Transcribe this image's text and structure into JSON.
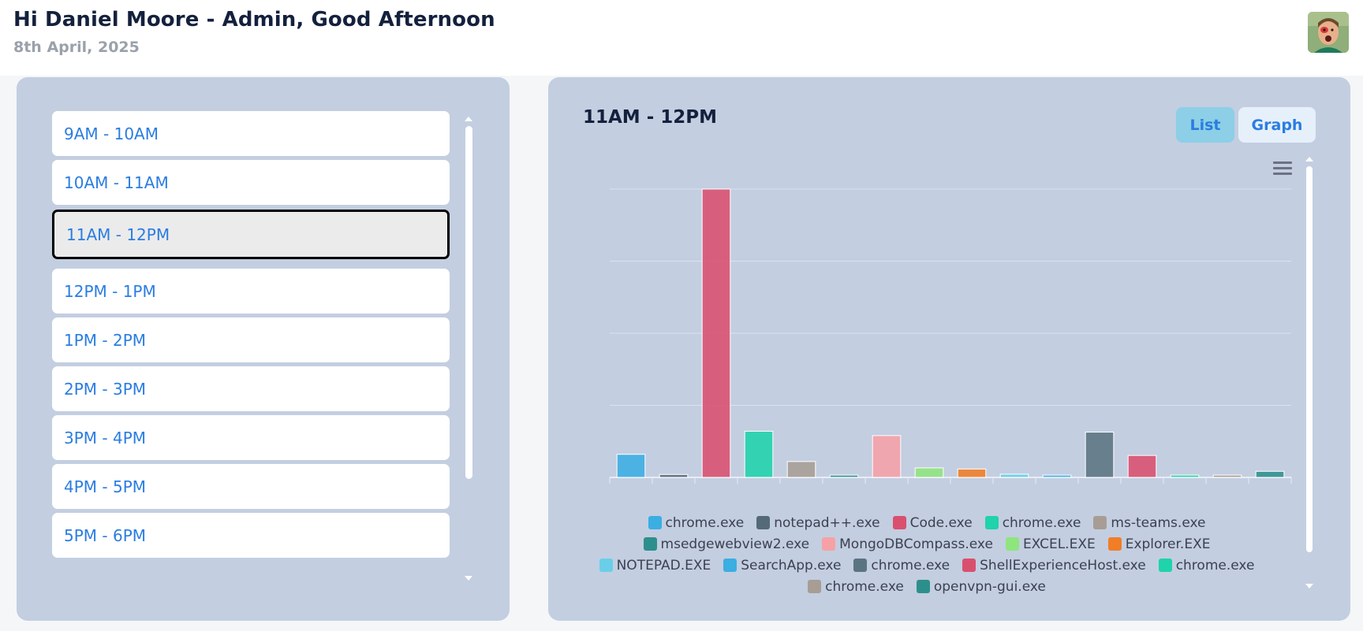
{
  "header": {
    "greeting": "Hi Daniel Moore - Admin, Good Afternoon",
    "date": "8th April, 2025"
  },
  "time_slots": [
    {
      "label": "9AM - 10AM",
      "active": false
    },
    {
      "label": "10AM - 11AM",
      "active": false
    },
    {
      "label": "11AM - 12PM",
      "active": true
    },
    {
      "label": "12PM - 1PM",
      "active": false
    },
    {
      "label": "1PM - 2PM",
      "active": false
    },
    {
      "label": "2PM - 3PM",
      "active": false
    },
    {
      "label": "3PM - 4PM",
      "active": false
    },
    {
      "label": "4PM - 5PM",
      "active": false
    },
    {
      "label": "5PM - 6PM",
      "active": false
    }
  ],
  "detail": {
    "title": "11AM - 12PM",
    "view_buttons": {
      "list": "List",
      "graph": "Graph"
    },
    "selected_view": "Graph"
  },
  "chart_data": {
    "type": "bar",
    "title": "",
    "xlabel": "",
    "ylabel": "",
    "ylim": [
      0,
      100
    ],
    "grid": true,
    "legend_position": "bottom",
    "series": [
      {
        "name": "chrome.exe",
        "color": "#3baee2",
        "value": 8
      },
      {
        "name": "notepad++.exe",
        "color": "#546a78",
        "value": 1
      },
      {
        "name": "Code.exe",
        "color": "#d9506e",
        "value": 100
      },
      {
        "name": "chrome.exe",
        "color": "#1fd3ab",
        "value": 16
      },
      {
        "name": "ms-teams.exe",
        "color": "#a79d94",
        "value": 5.5
      },
      {
        "name": "msedgewebview2.exe",
        "color": "#2d8f8c",
        "value": 0.8
      },
      {
        "name": "MongoDBCompass.exe",
        "color": "#f6a1a6",
        "value": 14.5
      },
      {
        "name": "EXCEL.EXE",
        "color": "#8fe57d",
        "value": 3.3
      },
      {
        "name": "Explorer.EXE",
        "color": "#f07e26",
        "value": 2.9
      },
      {
        "name": "NOTEPAD.EXE",
        "color": "#69cfe8",
        "value": 1.1
      },
      {
        "name": "SearchApp.exe",
        "color": "#3baee2",
        "value": 0.8
      },
      {
        "name": "chrome.exe",
        "color": "#5b7482",
        "value": 15.7
      },
      {
        "name": "ShellExperienceHost.exe",
        "color": "#d9506e",
        "value": 7.6
      },
      {
        "name": "chrome.exe",
        "color": "#1fd3ab",
        "value": 0.8
      },
      {
        "name": "chrome.exe",
        "color": "#a79d94",
        "value": 0.8
      },
      {
        "name": "openvpn-gui.exe",
        "color": "#2d8f8c",
        "value": 2.1
      }
    ]
  },
  "legend_rows": [
    [
      0,
      1,
      2,
      3,
      4
    ],
    [
      5,
      6,
      7,
      8
    ],
    [
      9,
      10,
      11,
      12,
      13
    ],
    [
      14,
      15
    ]
  ]
}
